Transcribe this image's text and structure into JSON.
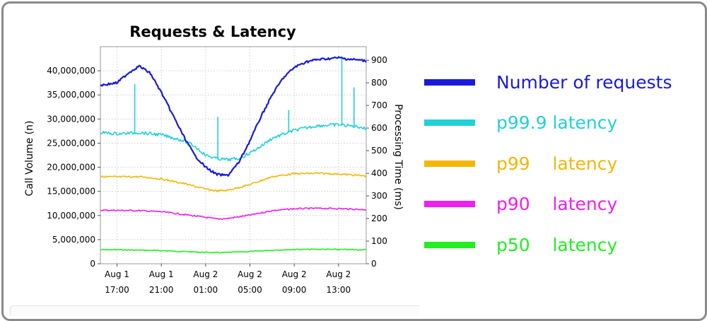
{
  "chart_data": {
    "type": "line",
    "title": "Requests & Latency",
    "ylabel_left": "Call Volume (n)",
    "ylabel_right": "Processing Time (ms)",
    "ylim_left": [
      0,
      45000000
    ],
    "ylim_right": [
      0,
      960
    ],
    "yticks_left": [
      "0",
      "5,000,000",
      "10,000,000",
      "15,000,000",
      "20,000,000",
      "25,000,000",
      "30,000,000",
      "35,000,000",
      "40,000,000"
    ],
    "yticks_left_values": [
      0,
      5000000,
      10000000,
      15000000,
      20000000,
      25000000,
      30000000,
      35000000,
      40000000
    ],
    "yticks_right": [
      "0",
      "100",
      "200",
      "300",
      "400",
      "500",
      "600",
      "700",
      "800",
      "900"
    ],
    "yticks_right_values": [
      0,
      100,
      200,
      300,
      400,
      500,
      600,
      700,
      800,
      900
    ],
    "xlim_hours": [
      -1.5,
      22.5
    ],
    "x_ticks": [
      {
        "line1": "Aug 1",
        "line2": "17:00",
        "hours": 0
      },
      {
        "line1": "Aug 1",
        "line2": "21:00",
        "hours": 4
      },
      {
        "line1": "Aug 2",
        "line2": "01:00",
        "hours": 8
      },
      {
        "line1": "Aug 2",
        "line2": "05:00",
        "hours": 12
      },
      {
        "line1": "Aug 2",
        "line2": "09:00",
        "hours": 16
      },
      {
        "line1": "Aug 2",
        "line2": "13:00",
        "hours": 20
      }
    ],
    "grid": true,
    "legend_position": "right",
    "series": [
      {
        "name": "Number of requests",
        "axis": "left",
        "color": "#1a1adc",
        "x_hours": [
          -1.5,
          0,
          1,
          2,
          3,
          4,
          5,
          6,
          7,
          8,
          9,
          10,
          11,
          12,
          13,
          14,
          15,
          16,
          17,
          18,
          19,
          20,
          21,
          22,
          22.5
        ],
        "values": [
          37000000,
          37500000,
          39500000,
          41000000,
          39500000,
          35500000,
          31000000,
          26500000,
          22500000,
          20000000,
          18500000,
          18300000,
          21000000,
          25500000,
          30500000,
          35000000,
          38500000,
          40700000,
          41800000,
          42300000,
          42500000,
          42700000,
          42400000,
          42200000,
          42000000
        ]
      },
      {
        "name": "p99.9 latency",
        "axis": "right",
        "color": "#22d0d8",
        "x_hours": [
          -1.5,
          0,
          2,
          4,
          6,
          7,
          8,
          9,
          10,
          11,
          12,
          13,
          14,
          16,
          18,
          20,
          22,
          22.5
        ],
        "values": [
          580,
          575,
          580,
          570,
          545,
          520,
          480,
          465,
          460,
          465,
          490,
          520,
          555,
          590,
          610,
          615,
          605,
          595
        ],
        "spikes": [
          {
            "hours": 1.6,
            "value": 795
          },
          {
            "hours": 9.1,
            "value": 650
          },
          {
            "hours": 15.5,
            "value": 680
          },
          {
            "hours": 20.3,
            "value": 918
          },
          {
            "hours": 21.4,
            "value": 780
          }
        ]
      },
      {
        "name": "p99 latency",
        "axis": "right",
        "color": "#f2b708",
        "x_hours": [
          -1.5,
          0,
          2,
          4,
          6,
          8,
          9,
          10,
          12,
          14,
          16,
          18,
          20,
          22,
          22.5
        ],
        "values": [
          385,
          384,
          385,
          375,
          355,
          330,
          322,
          325,
          350,
          385,
          398,
          400,
          397,
          390,
          388
        ]
      },
      {
        "name": "p90 latency",
        "axis": "right",
        "color": "#ee1ff0",
        "x_hours": [
          -1.5,
          0,
          2,
          4,
          6,
          8,
          9,
          10,
          12,
          14,
          16,
          18,
          20,
          22,
          22.5
        ],
        "values": [
          237,
          236,
          235,
          230,
          218,
          205,
          198,
          200,
          215,
          235,
          243,
          245,
          244,
          240,
          240
        ]
      },
      {
        "name": "p50 latency",
        "axis": "right",
        "color": "#22ee22",
        "x_hours": [
          -1.5,
          0,
          2,
          4,
          6,
          8,
          9,
          10,
          12,
          14,
          16,
          18,
          20,
          22,
          22.5
        ],
        "values": [
          62,
          62,
          60,
          58,
          54,
          50,
          49,
          50,
          54,
          60,
          63,
          64,
          63,
          62,
          62
        ]
      }
    ]
  },
  "legend": [
    {
      "label": "Number of requests",
      "color": "#1a1adc"
    },
    {
      "label": "p99.9 latency",
      "color": "#22d0d8"
    },
    {
      "label": "p99    latency",
      "color": "#f2b708"
    },
    {
      "label": "p90    latency",
      "color": "#ee1ff0"
    },
    {
      "label": "p50    latency",
      "color": "#22ee22"
    }
  ]
}
